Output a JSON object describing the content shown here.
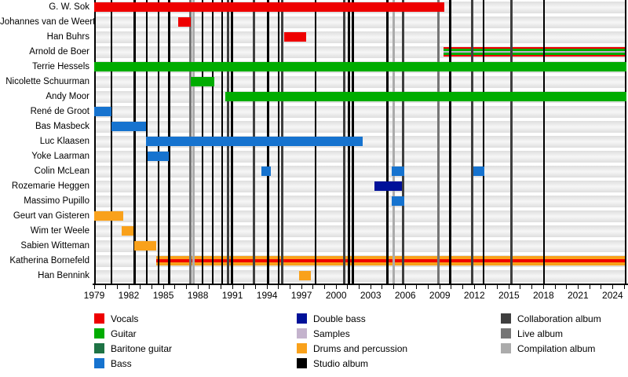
{
  "chart_data": {
    "type": "timeline",
    "x_axis": {
      "min": 1979,
      "max": 2025.2,
      "minor_tick_step": 1,
      "tick_years": [
        1979,
        1982,
        1985,
        1988,
        1991,
        1994,
        1997,
        2000,
        2003,
        2006,
        2009,
        2012,
        2015,
        2018,
        2021,
        2024
      ],
      "tick_labels": [
        "1979",
        "1982",
        "1985",
        "1988",
        "1991",
        "1994",
        "1997",
        "2000",
        "2003",
        "2006",
        "2009",
        "2012",
        "2015",
        "2018",
        "2021",
        "2024"
      ]
    },
    "roles": {
      "vocals": "#EE0000",
      "guitar": "#00AC00",
      "baritone_guitar": "#1E7345",
      "bass": "#1673CF",
      "double_bass": "#001199",
      "samples": "#C4B3CD",
      "drums": "#F9A11B"
    },
    "album_line_types": {
      "studio": "#000000",
      "collaboration": "#3F3F3F",
      "live": "#757575",
      "compilation": "#ABABAB"
    },
    "members": [
      {
        "name": "G. W. Sok",
        "bars": [
          {
            "roles": [
              "vocals"
            ],
            "from": 1979,
            "to": 2009.4
          }
        ]
      },
      {
        "name": "Johannes van de Weert",
        "bars": [
          {
            "roles": [
              "vocals"
            ],
            "from": 1986.3,
            "to": 1987.4
          }
        ]
      },
      {
        "name": "Han Buhrs",
        "bars": [
          {
            "roles": [
              "vocals"
            ],
            "from": 1995.5,
            "to": 1997.4
          }
        ]
      },
      {
        "name": "Arnold de Boer",
        "bars": [
          {
            "roles": [
              "vocals",
              "guitar",
              "samples",
              "guitar",
              "vocals"
            ],
            "from": 2009.3,
            "to": 2025.2,
            "under_lines": true
          }
        ]
      },
      {
        "name": "Terrie Hessels",
        "bars": [
          {
            "roles": [
              "guitar"
            ],
            "from": 1979,
            "to": 2025.2
          }
        ]
      },
      {
        "name": "Nicolette Schuurman",
        "bars": [
          {
            "roles": [
              "guitar"
            ],
            "from": 1987.4,
            "to": 1989.4
          }
        ]
      },
      {
        "name": "Andy Moor",
        "bars": [
          {
            "roles": [
              "guitar"
            ],
            "from": 1990.4,
            "to": 2025.2
          }
        ]
      },
      {
        "name": "René de Groot",
        "bars": [
          {
            "roles": [
              "bass"
            ],
            "from": 1979,
            "to": 1980.5
          }
        ]
      },
      {
        "name": "Bas Masbeck",
        "bars": [
          {
            "roles": [
              "bass"
            ],
            "from": 1980.5,
            "to": 1983.5
          }
        ]
      },
      {
        "name": "Luc Klaasen",
        "bars": [
          {
            "roles": [
              "bass"
            ],
            "from": 1983.5,
            "to": 2002.3
          }
        ]
      },
      {
        "name": "Yoke Laarman",
        "bars": [
          {
            "roles": [
              "bass"
            ],
            "from": 1983.6,
            "to": 1985.5
          }
        ]
      },
      {
        "name": "Colin McLean",
        "bars": [
          {
            "roles": [
              "bass"
            ],
            "from": 1993.5,
            "to": 1994.3
          },
          {
            "roles": [
              "bass"
            ],
            "from": 2004.8,
            "to": 2005.9
          },
          {
            "roles": [
              "bass"
            ],
            "from": 2011.9,
            "to": 2012.9
          }
        ]
      },
      {
        "name": "Rozemarie Heggen",
        "bars": [
          {
            "roles": [
              "double_bass"
            ],
            "from": 2003.3,
            "to": 2005.7
          }
        ]
      },
      {
        "name": "Massimo Pupillo",
        "bars": [
          {
            "roles": [
              "bass"
            ],
            "from": 2004.8,
            "to": 2005.9
          }
        ]
      },
      {
        "name": "Geurt van Gisteren",
        "bars": [
          {
            "roles": [
              "drums"
            ],
            "from": 1979,
            "to": 1981.5
          }
        ]
      },
      {
        "name": "Wim ter Weele",
        "bars": [
          {
            "roles": [
              "drums"
            ],
            "from": 1981.4,
            "to": 1982.4
          }
        ]
      },
      {
        "name": "Sabien Witteman",
        "bars": [
          {
            "roles": [
              "drums"
            ],
            "from": 1982.5,
            "to": 1984.4
          }
        ]
      },
      {
        "name": "Katherina Bornefeld",
        "bars": [
          {
            "roles": [
              "drums",
              "vocals",
              "drums"
            ],
            "from": 1984.4,
            "to": 2025.2,
            "under_lines": true
          }
        ]
      },
      {
        "name": "Han Bennink",
        "bars": [
          {
            "roles": [
              "drums"
            ],
            "from": 1996.8,
            "to": 1997.8
          }
        ]
      }
    ],
    "album_lines": [
      {
        "year": 1980.5,
        "type": "studio"
      },
      {
        "year": 1982.5,
        "type": "studio"
      },
      {
        "year": 1983.55,
        "type": "studio"
      },
      {
        "year": 1984.6,
        "type": "studio"
      },
      {
        "year": 1985.5,
        "type": "studio"
      },
      {
        "year": 1987.35,
        "type": "live"
      },
      {
        "year": 1987.65,
        "type": "compilation"
      },
      {
        "year": 1988.4,
        "type": "studio"
      },
      {
        "year": 1989.3,
        "type": "studio"
      },
      {
        "year": 1990.1,
        "type": "studio"
      },
      {
        "year": 1990.6,
        "type": "collaboration"
      },
      {
        "year": 1990.95,
        "type": "studio"
      },
      {
        "year": 1992.9,
        "type": "collaboration"
      },
      {
        "year": 1994.1,
        "type": "studio"
      },
      {
        "year": 1995.0,
        "type": "studio"
      },
      {
        "year": 1995.3,
        "type": "collaboration"
      },
      {
        "year": 1998.2,
        "type": "studio"
      },
      {
        "year": 2000.7,
        "type": "collaboration"
      },
      {
        "year": 2001.1,
        "type": "studio"
      },
      {
        "year": 2001.45,
        "type": "studio"
      },
      {
        "year": 2004.45,
        "type": "studio"
      },
      {
        "year": 2005.0,
        "type": "compilation"
      },
      {
        "year": 2005.8,
        "type": "collaboration"
      },
      {
        "year": 2008.9,
        "type": "live"
      },
      {
        "year": 2009.9,
        "type": "studio"
      },
      {
        "year": 2011.8,
        "type": "collaboration"
      },
      {
        "year": 2012.8,
        "type": "studio"
      },
      {
        "year": 2015.2,
        "type": "collaboration"
      },
      {
        "year": 2018.05,
        "type": "studio"
      }
    ],
    "legend": {
      "columns": [
        [
          {
            "label": "Vocals",
            "color": "#EE0000"
          },
          {
            "label": "Guitar",
            "color": "#00AC00"
          },
          {
            "label": "Baritone guitar",
            "color": "#1E7345"
          },
          {
            "label": "Bass",
            "color": "#1673CF"
          }
        ],
        [
          {
            "label": "Double bass",
            "color": "#001199"
          },
          {
            "label": "Samples",
            "color": "#C4B3CD"
          },
          {
            "label": "Drums and percussion",
            "color": "#F9A11B"
          },
          {
            "label": "Studio album",
            "color": "#000000"
          }
        ],
        [
          {
            "label": "Collaboration album",
            "color": "#3F3F3F"
          },
          {
            "label": "Live album",
            "color": "#757575"
          },
          {
            "label": "Compilation album",
            "color": "#ABABAB"
          }
        ]
      ]
    }
  }
}
